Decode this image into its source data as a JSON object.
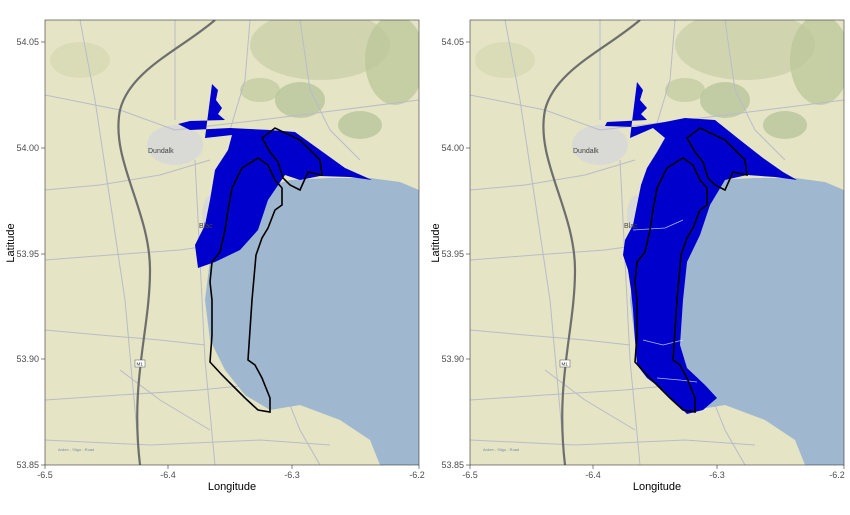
{
  "panels": [
    {
      "id": "left",
      "xlabel": "Longitude",
      "ylabel": "Latitude",
      "x_ticks": [
        "-6.5",
        "-6.4",
        "-6.3",
        "-6.2"
      ],
      "y_ticks": [
        "54.05",
        "54.00",
        "53.95",
        "53.90",
        "53.85"
      ],
      "map_labels": {
        "town": "Dundalk",
        "town2": "Blac",
        "road_shield": "M1",
        "road_name": "Ardee - Sligo - Road"
      }
    },
    {
      "id": "right",
      "xlabel": "Longitude",
      "ylabel": "Latitude",
      "x_ticks": [
        "-6.5",
        "-6.4",
        "-6.3",
        "-6.2"
      ],
      "y_ticks": [
        "54.05",
        "54.00",
        "53.95",
        "53.90",
        "53.85"
      ],
      "map_labels": {
        "town": "Dundalk",
        "town2": "Blac",
        "road_shield": "M1",
        "road_name": "Ardee - Sligo - Road"
      }
    }
  ],
  "colors": {
    "land": "#e5e4c4",
    "water": "#9fb8cf",
    "flood": "#0000cc",
    "outline": "#000000",
    "roads": "#b9bcc8",
    "motorway": "#6e6e6e",
    "hills": "#a8bd8f"
  },
  "chart_data": {
    "type": "map",
    "xlim": [
      -6.5,
      -6.2
    ],
    "ylim": [
      53.85,
      54.06
    ],
    "panels": [
      "left",
      "right"
    ],
    "layers": [
      "terrain basemap",
      "blue flood extent polygon",
      "black outline polygons"
    ],
    "grid": false
  }
}
